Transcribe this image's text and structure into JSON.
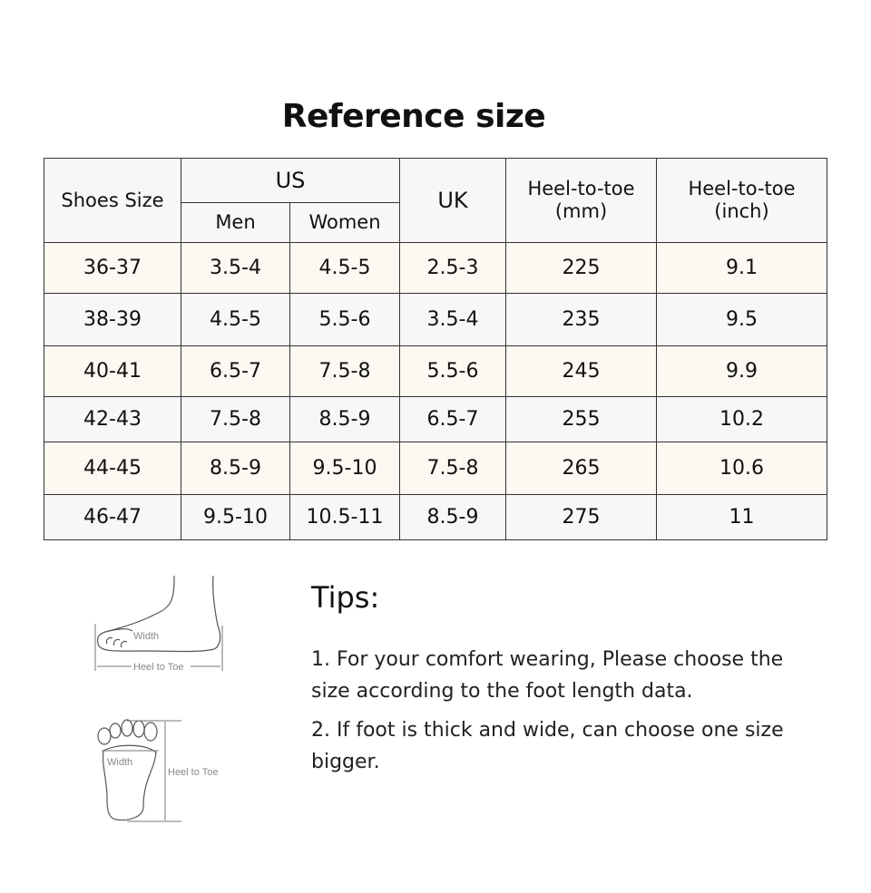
{
  "title": "Reference size",
  "table": {
    "headers": {
      "shoes_size": "Shoes Size",
      "us": "US",
      "men": "Men",
      "women": "Women",
      "uk": "UK",
      "heel_mm": "Heel-to-toe\n(mm)",
      "heel_inch": "Heel-to-toe\n(inch)"
    },
    "rows": [
      [
        "36-37",
        "3.5-4",
        "4.5-5",
        "2.5-3",
        "225",
        "9.1"
      ],
      [
        "38-39",
        "4.5-5",
        "5.5-6",
        "3.5-4",
        "235",
        "9.5"
      ],
      [
        "40-41",
        "6.5-7",
        "7.5-8",
        "5.5-6",
        "245",
        "9.9"
      ],
      [
        "42-43",
        "7.5-8",
        "8.5-9",
        "6.5-7",
        "255",
        "10.2"
      ],
      [
        "44-45",
        "8.5-9",
        "9.5-10",
        "7.5-8",
        "265",
        "10.6"
      ],
      [
        "46-47",
        "9.5-10",
        "10.5-11",
        "8.5-9",
        "275",
        "11"
      ]
    ]
  },
  "diagram": {
    "width_label": "Width",
    "heel_to_toe_label": "Heel to Toe"
  },
  "tips": {
    "title": "Tips:",
    "items": [
      "1. For your comfort wearing, Please choose the size according to the foot length data.",
      "2. If foot is thick and wide, can choose one size bigger."
    ]
  }
}
